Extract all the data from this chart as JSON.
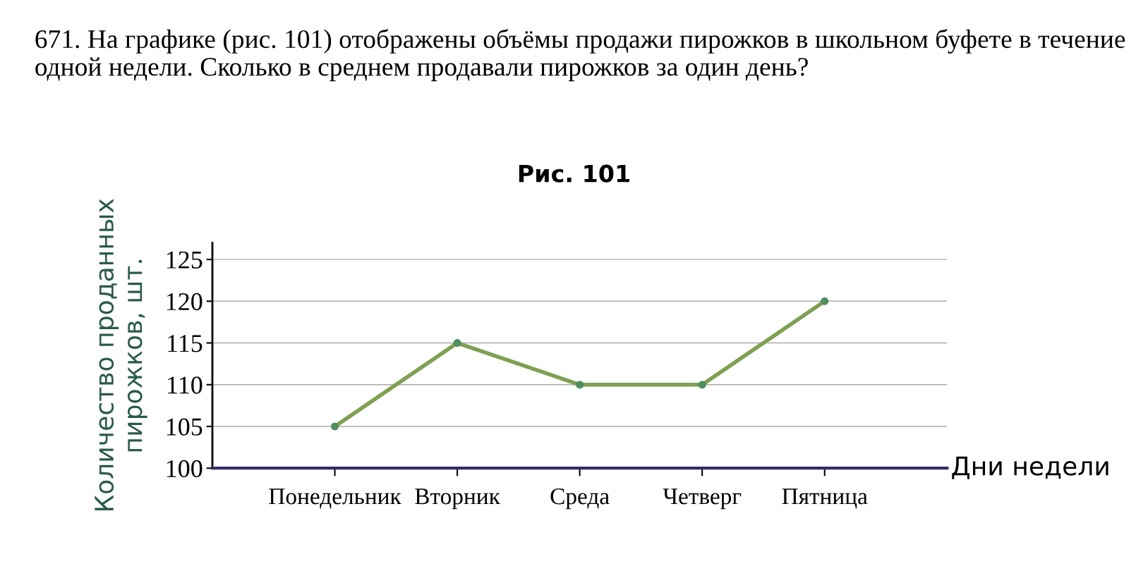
{
  "chart_data": {
    "type": "line",
    "title": "Рис. 101",
    "annotations": [
      "671. На графике (рис. 101) отображены объёмы продажи пирожков в школьном буфете в течение одной недели. Сколько в среднем продавали пирожков за один день?"
    ],
    "xlabel": "Дни недели",
    "ylabel": "Количество проданных\nпирожков, шт.",
    "categories": [
      "Понедельник",
      "Вторник",
      "Среда",
      "Четверг",
      "Пятница"
    ],
    "series": [
      {
        "color": "#7f9f52",
        "values": [
          105,
          115,
          110,
          110,
          120
        ]
      }
    ],
    "ylim": [
      100,
      127
    ],
    "yticks": [
      100,
      105,
      110,
      115,
      120,
      125
    ],
    "grid": "y",
    "marker": "circle",
    "line_style": "solid",
    "legend": false
  }
}
